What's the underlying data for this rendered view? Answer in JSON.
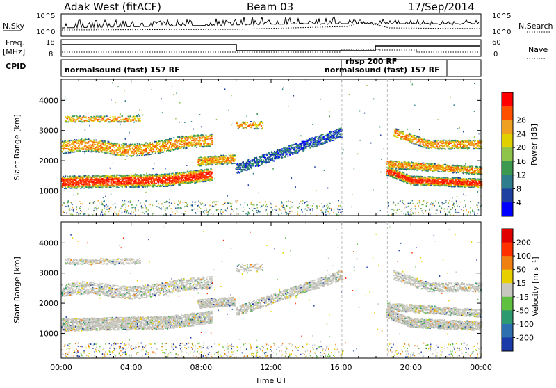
{
  "header": {
    "station": "Adak West (fitACF)",
    "beam": "Beam 03",
    "date": "17/Sep/2014"
  },
  "nsky_panel": {
    "left_label": "N.Sky",
    "right_label": "N.Search",
    "left_ticks": [
      "10^5",
      "10^0"
    ],
    "right_ticks": [
      "10^5",
      "10^0"
    ]
  },
  "freq_panel": {
    "left_label_1": "Freq.",
    "left_label_2": "[MHz]",
    "left_ticks": [
      "18",
      "8"
    ],
    "right_label": "Nave",
    "right_ticks": [
      "60",
      "0"
    ]
  },
  "cpid_panel": {
    "label": "CPID",
    "segments": [
      {
        "text": "normalsound (fast) 157 RF"
      },
      {
        "text": "rbsp 200 RF"
      },
      {
        "text": "normalsound (fast) 157 RF"
      }
    ]
  },
  "chart_data": [
    {
      "type": "heatmap",
      "title": "Power",
      "ylabel": "Slant Range [km]",
      "xlabel": "",
      "x_range_hours": [
        0,
        24
      ],
      "ylim": [
        180,
        4700
      ],
      "yticks": [
        "1000",
        "2000",
        "3000",
        "4000"
      ],
      "colorbar": {
        "label": "Power [dB]",
        "ticks": [
          "4",
          "8",
          "12",
          "16",
          "20",
          "24",
          "28"
        ],
        "colors": [
          "#0000ff",
          "#1e40a0",
          "#2e7d8c",
          "#3b9a50",
          "#8fc44a",
          "#e0d000",
          "#f0a020",
          "#ff5000",
          "#ff0000"
        ]
      }
    },
    {
      "type": "heatmap",
      "title": "Velocity",
      "ylabel": "Slant Range [km]",
      "xlabel": "Time UT",
      "x_range_hours": [
        0,
        24
      ],
      "ylim": [
        180,
        4700
      ],
      "yticks": [
        "1000",
        "2000",
        "3000",
        "4000"
      ],
      "xticks": [
        "00:00",
        "04:00",
        "08:00",
        "12:00",
        "16:00",
        "20:00",
        "00:00"
      ],
      "colorbar": {
        "label": "Velocity [m s⁻¹]",
        "ticks": [
          "200",
          "100",
          "50",
          "15",
          "-15",
          "-50",
          "-100",
          "-200"
        ],
        "colors": [
          "#1a3aa8",
          "#2e6fb0",
          "#2e9a70",
          "#60c040",
          "#c8c8c0",
          "#e8d000",
          "#f08010",
          "#ff3000",
          "#e00000"
        ]
      }
    }
  ]
}
